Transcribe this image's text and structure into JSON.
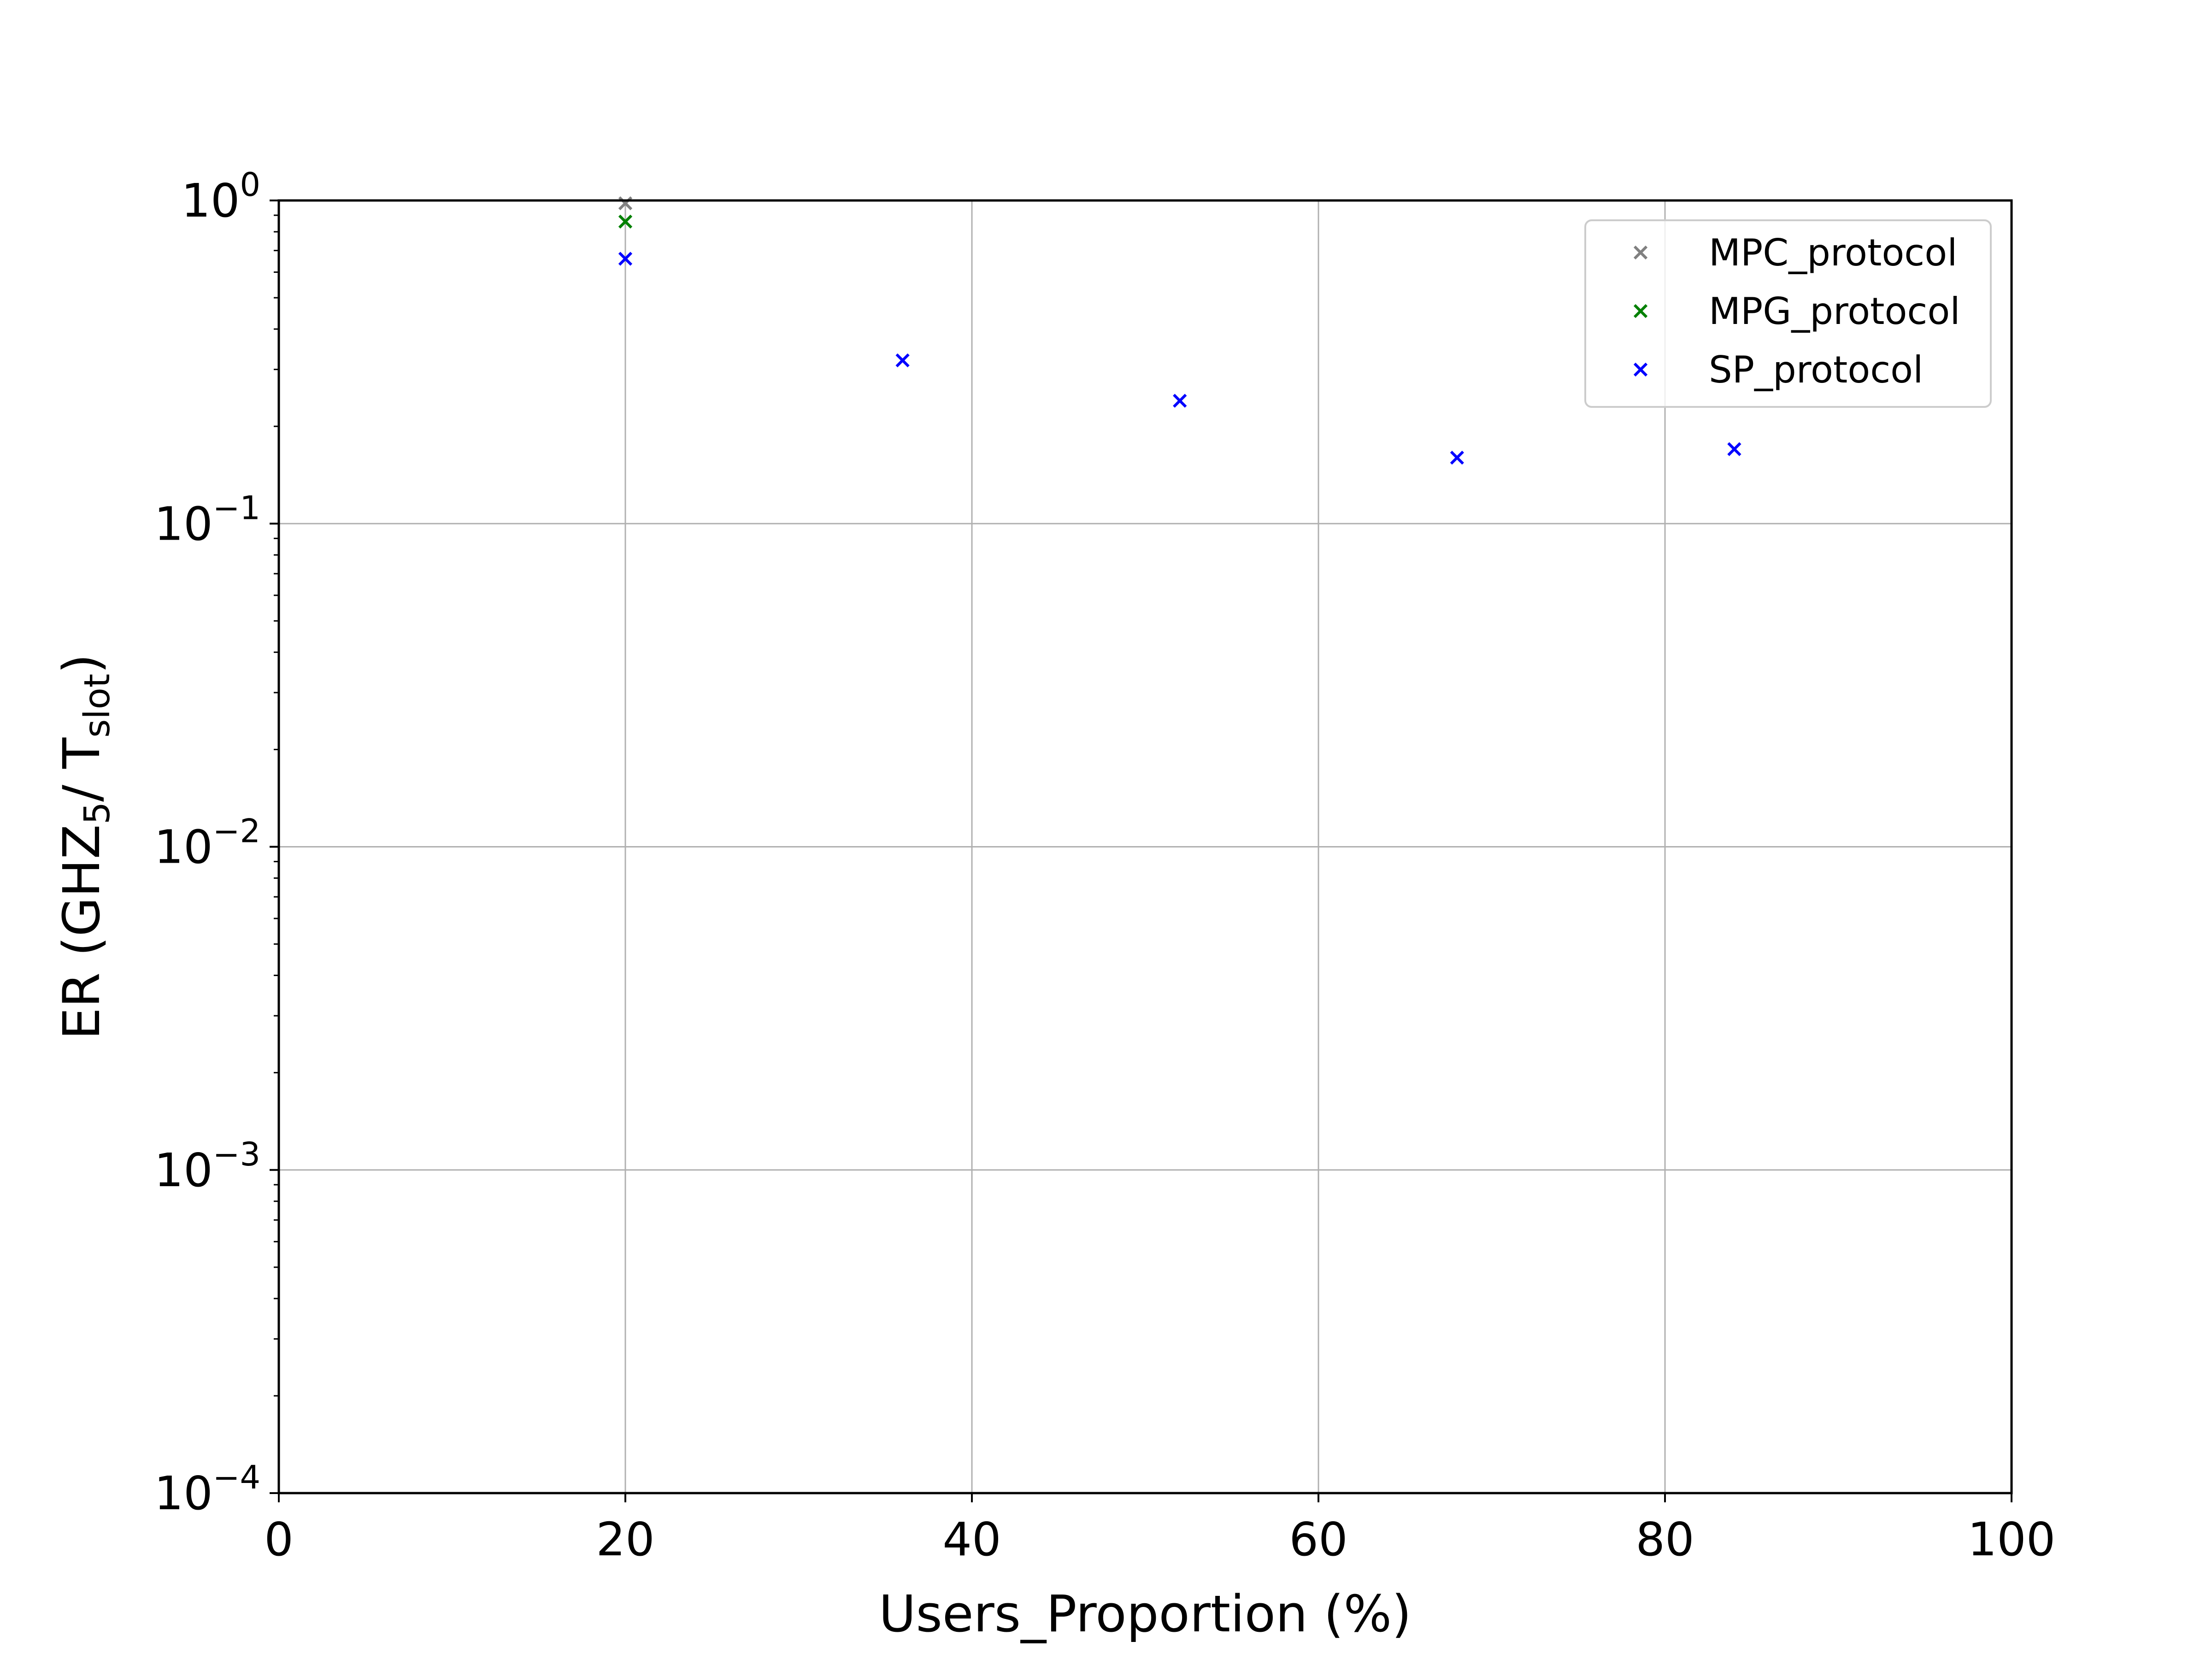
{
  "chart_data": {
    "type": "scatter",
    "xlabel": "Users_Proportion (%)",
    "ylabel": {
      "prefix": "ER (GHZ",
      "sub1": "5",
      "middle": "/ T",
      "sub2": "slot",
      "suffix": ")"
    },
    "xlim": [
      0,
      100
    ],
    "ylim": [
      0.0001,
      1
    ],
    "yscale": "log",
    "grid": true,
    "legend_position": "top-right",
    "x_ticks": [
      "0",
      "20",
      "40",
      "60",
      "80",
      "100"
    ],
    "y_ticks": [
      {
        "value": 0.0001,
        "base": "10",
        "exp": "−4"
      },
      {
        "value": 0.001,
        "base": "10",
        "exp": "−3"
      },
      {
        "value": 0.01,
        "base": "10",
        "exp": "−2"
      },
      {
        "value": 0.1,
        "base": "10",
        "exp": "−1"
      },
      {
        "value": 1,
        "base": "10",
        "exp": "0"
      }
    ],
    "series": [
      {
        "name": "MPC_protocol",
        "color": "#808080",
        "marker": "x",
        "points": [
          {
            "x": 20,
            "y": 0.98
          }
        ]
      },
      {
        "name": "MPG_protocol",
        "color": "#008000",
        "marker": "x",
        "points": [
          {
            "x": 20,
            "y": 0.86
          }
        ]
      },
      {
        "name": "SP_protocol",
        "color": "#0000ff",
        "marker": "x",
        "points": [
          {
            "x": 20,
            "y": 0.66
          },
          {
            "x": 36,
            "y": 0.32
          },
          {
            "x": 52,
            "y": 0.24
          },
          {
            "x": 68,
            "y": 0.16
          },
          {
            "x": 84,
            "y": 0.17
          }
        ]
      }
    ]
  }
}
